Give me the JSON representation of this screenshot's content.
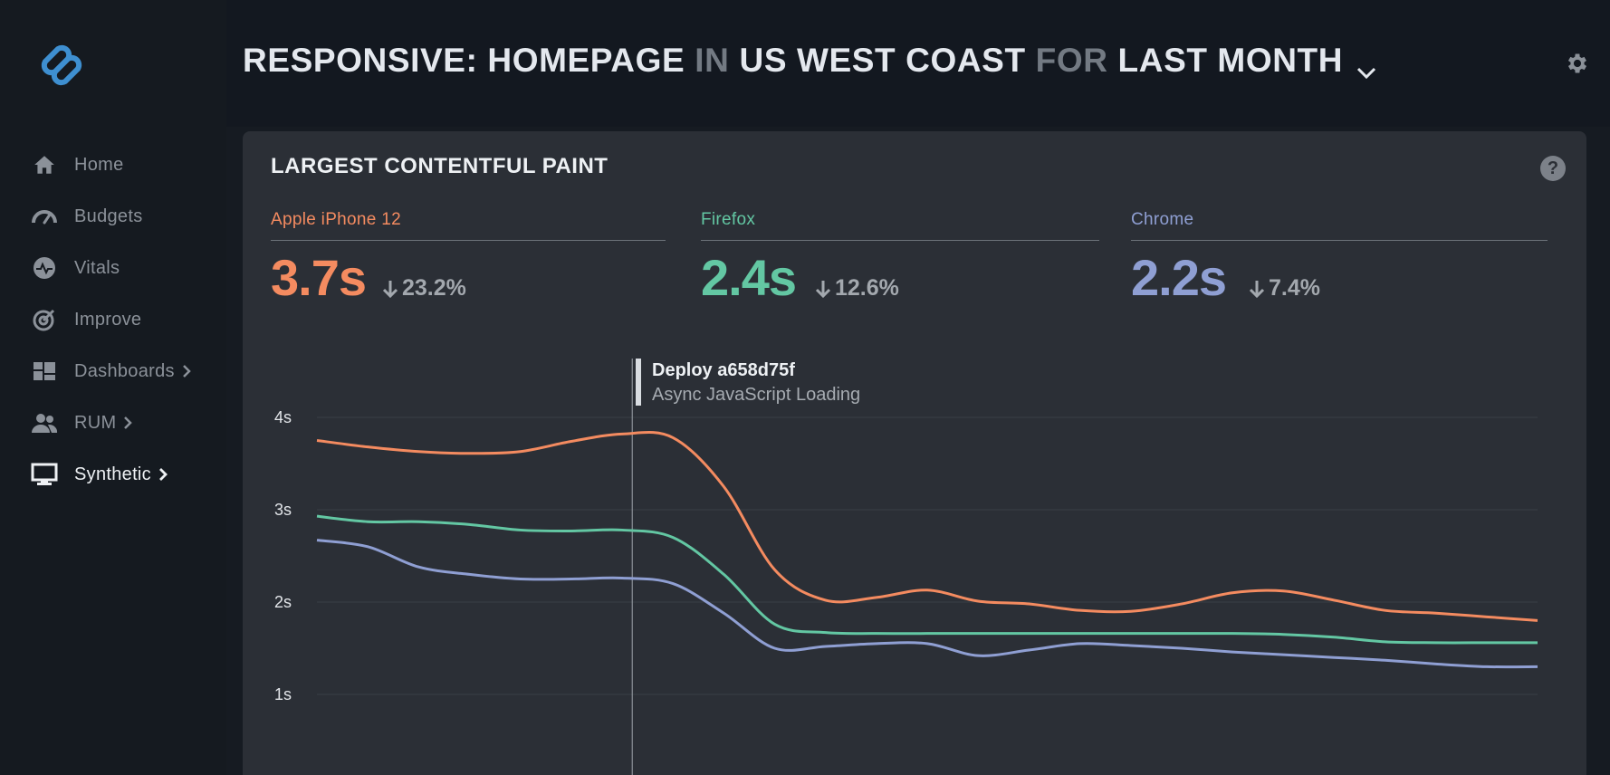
{
  "header": {
    "title_parts": [
      "RESPONSIVE: HOMEPAGE",
      "IN",
      "US WEST COAST",
      "FOR",
      "LAST MONTH"
    ]
  },
  "sidebar": {
    "items": [
      {
        "label": "Home",
        "icon": "home-icon"
      },
      {
        "label": "Budgets",
        "icon": "gauge-icon"
      },
      {
        "label": "Vitals",
        "icon": "pulse-icon"
      },
      {
        "label": "Improve",
        "icon": "target-icon"
      },
      {
        "label": "Dashboards",
        "icon": "dashboard-icon",
        "has_submenu": true
      },
      {
        "label": "RUM",
        "icon": "users-icon",
        "has_submenu": true
      },
      {
        "label": "Synthetic",
        "icon": "monitor-icon",
        "has_submenu": true,
        "active": true
      }
    ]
  },
  "panel": {
    "title": "LARGEST CONTENTFUL PAINT",
    "help_label": "?",
    "metrics": [
      {
        "name": "Apple iPhone 12",
        "value": "3.7s",
        "delta": "23.2%",
        "direction": "down",
        "color": "#f48b60"
      },
      {
        "name": "Firefox",
        "value": "2.4s",
        "delta": "12.6%",
        "direction": "down",
        "color": "#63c7a3"
      },
      {
        "name": "Chrome",
        "value": "2.2s",
        "delta": "7.4%",
        "direction": "down",
        "color": "#8f9fd3"
      }
    ],
    "annotation": {
      "title": "Deploy a658d75f",
      "subtitle": "Async JavaScript Loading"
    }
  },
  "chart_data": {
    "type": "line",
    "x": [
      0,
      1,
      2,
      3,
      4,
      5,
      6,
      7,
      8,
      9,
      10,
      11,
      12,
      13,
      14,
      15,
      16,
      17,
      18,
      19,
      20,
      21,
      22,
      23,
      24
    ],
    "yticks": [
      "4s",
      "3s",
      "2s",
      "1s"
    ],
    "ylim": [
      0.5,
      4.2
    ],
    "grid": true,
    "annotation_x": 6.2,
    "series": [
      {
        "name": "Apple iPhone 12",
        "color": "#f48b60",
        "values": [
          3.75,
          3.68,
          3.63,
          3.61,
          3.63,
          3.74,
          3.82,
          3.78,
          3.25,
          2.35,
          2.02,
          2.05,
          2.13,
          2.01,
          1.98,
          1.91,
          1.9,
          1.98,
          2.1,
          2.12,
          2.02,
          1.91,
          1.88,
          1.84,
          1.8
        ]
      },
      {
        "name": "Firefox",
        "color": "#63c7a3",
        "values": [
          2.93,
          2.87,
          2.87,
          2.84,
          2.78,
          2.77,
          2.78,
          2.7,
          2.3,
          1.76,
          1.67,
          1.66,
          1.66,
          1.66,
          1.66,
          1.66,
          1.66,
          1.66,
          1.66,
          1.65,
          1.62,
          1.57,
          1.56,
          1.56,
          1.56
        ]
      },
      {
        "name": "Chrome",
        "color": "#8f9fd3",
        "values": [
          2.67,
          2.6,
          2.38,
          2.3,
          2.25,
          2.25,
          2.26,
          2.2,
          1.88,
          1.5,
          1.52,
          1.55,
          1.55,
          1.42,
          1.48,
          1.55,
          1.53,
          1.5,
          1.46,
          1.43,
          1.4,
          1.37,
          1.33,
          1.3,
          1.3
        ]
      }
    ]
  }
}
